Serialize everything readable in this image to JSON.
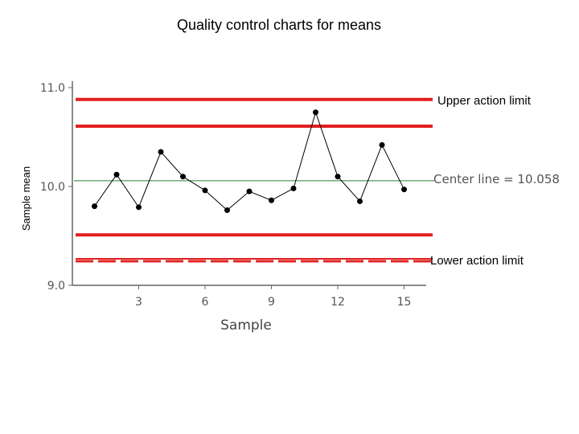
{
  "slide": {
    "title": "Quality control charts for means"
  },
  "colors": {
    "limit": "#e21f1f",
    "center": "#2e7d32",
    "series": "#000000",
    "axis": "#666666"
  },
  "chart_data": {
    "type": "line",
    "xlabel": "Sample",
    "ylabel": "Sample mean",
    "xlim": [
      0,
      16
    ],
    "ylim": [
      9.0,
      11.0
    ],
    "x_ticks": [
      3,
      6,
      9,
      12,
      15
    ],
    "y_ticks": [
      9.0,
      10.0,
      11.0
    ],
    "y_tick_labels": [
      "9.0",
      "10.0",
      "11.0"
    ],
    "series": [
      {
        "x": [
          1,
          2,
          3,
          4,
          5,
          6,
          7,
          8,
          9,
          10,
          11,
          12,
          13,
          14,
          15
        ],
        "values": [
          9.8,
          10.12,
          9.79,
          10.35,
          10.1,
          9.96,
          9.76,
          9.95,
          9.86,
          9.98,
          10.75,
          10.1,
          9.85,
          10.42,
          9.97
        ]
      }
    ],
    "center_line": {
      "value": 10.058,
      "label": "Center line = 10.058"
    },
    "limits": [
      {
        "value": 10.88,
        "label": "Upper action limit",
        "style": "solid"
      },
      {
        "value": 10.61,
        "label": "",
        "style": "solid"
      },
      {
        "value": 9.51,
        "label": "",
        "style": "solid"
      },
      {
        "value": 9.26,
        "label": "Lower action limit",
        "style": "dashed"
      }
    ]
  }
}
